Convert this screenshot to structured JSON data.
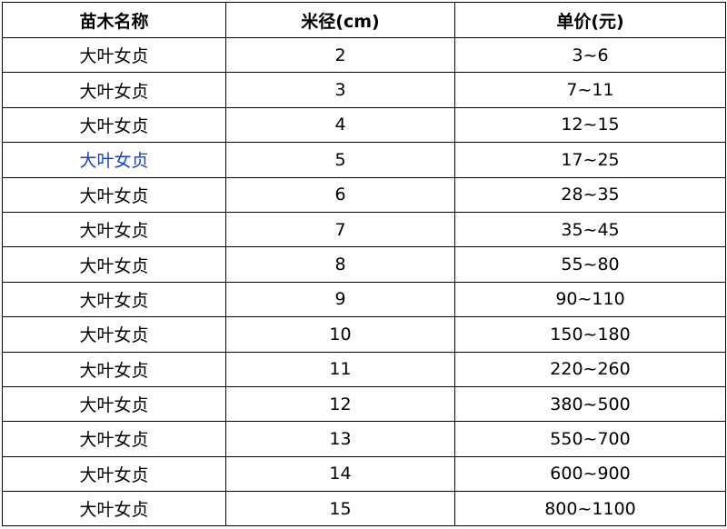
{
  "table": {
    "header": [
      "苗木名称",
      "米径(cm)",
      "单价(元)"
    ],
    "rows": [
      [
        "大叶女贞",
        "2",
        "3~6"
      ],
      [
        "大叶女贞",
        "3",
        "7~11"
      ],
      [
        "大叶女贞",
        "4",
        "12~15"
      ],
      [
        "大叶女贞",
        "5",
        "17~25"
      ],
      [
        "大叶女贞",
        "6",
        "28~35"
      ],
      [
        "大叶女贞",
        "7",
        "35~45"
      ],
      [
        "大叶女贞",
        "8",
        "55~80"
      ],
      [
        "大叶女贞",
        "9",
        "90~110"
      ],
      [
        "大叶女贞",
        "10",
        "150~180"
      ],
      [
        "大叶女贞",
        "11",
        "220~260"
      ],
      [
        "大叶女贞",
        "12",
        "380~500"
      ],
      [
        "大叶女贞",
        "13",
        "550~700"
      ],
      [
        "大叶女贞",
        "14",
        "600~900"
      ],
      [
        "大叶女贞",
        "15",
        "800~1100"
      ]
    ],
    "link_row": 3
  }
}
